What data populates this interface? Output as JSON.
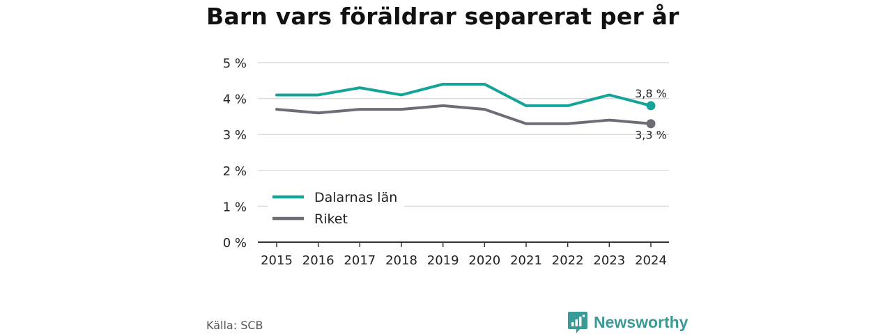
{
  "header": {
    "title": "Barn vars föräldrar separerat per år"
  },
  "chart_data": {
    "type": "line",
    "x": [
      2015,
      2016,
      2017,
      2018,
      2019,
      2020,
      2021,
      2022,
      2023,
      2024
    ],
    "series": [
      {
        "name": "Dalarnas län",
        "color": "#16a399",
        "values": [
          4.1,
          4.1,
          4.3,
          4.1,
          4.4,
          4.4,
          3.8,
          3.8,
          4.1,
          3.8
        ],
        "end_label": "3,8 %"
      },
      {
        "name": "Riket",
        "color": "#6e6c75",
        "values": [
          3.7,
          3.6,
          3.7,
          3.7,
          3.8,
          3.7,
          3.3,
          3.3,
          3.4,
          3.3
        ],
        "end_label": "3,3 %"
      }
    ],
    "yticks": [
      0,
      1,
      2,
      3,
      4,
      5
    ],
    "ytick_labels": [
      "0 %",
      "1 %",
      "2 %",
      "3 %",
      "4 %",
      "5 %"
    ],
    "ylim": [
      0,
      5
    ],
    "grid": true,
    "legend": "bottom-left"
  },
  "footer": {
    "source": "Källa: SCB",
    "brand": "Newsworthy",
    "brand_icon": "bar-chart-speech-icon",
    "brand_color": "#3a9a96"
  }
}
